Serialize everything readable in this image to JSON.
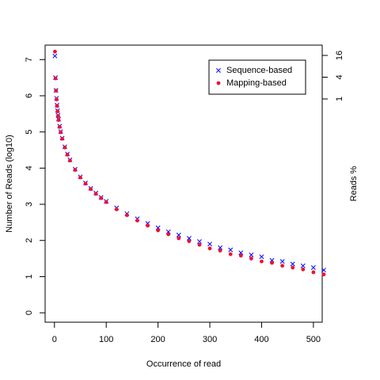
{
  "chart_data": {
    "type": "scatter",
    "xlabel": "Occurrence of read",
    "ylabel": "Number of Reads (log10)",
    "y2label": "Reads %",
    "x": [
      1,
      2,
      3,
      4,
      5,
      6,
      7,
      8,
      10,
      12,
      15,
      20,
      25,
      30,
      40,
      50,
      60,
      70,
      80,
      90,
      100,
      120,
      140,
      160,
      180,
      200,
      220,
      240,
      260,
      280,
      300,
      320,
      340,
      360,
      380,
      400,
      420,
      440,
      460,
      480,
      500,
      520
    ],
    "series": [
      {
        "name": "Sequence-based",
        "color": "#0000ff",
        "marker": "x",
        "values": [
          7.1,
          6.5,
          6.15,
          5.93,
          5.74,
          5.59,
          5.46,
          5.35,
          5.16,
          5.01,
          4.83,
          4.59,
          4.39,
          4.23,
          3.97,
          3.76,
          3.59,
          3.44,
          3.31,
          3.19,
          3.08,
          2.9,
          2.74,
          2.6,
          2.47,
          2.35,
          2.24,
          2.15,
          2.06,
          1.97,
          1.9,
          1.8,
          1.74,
          1.66,
          1.6,
          1.55,
          1.45,
          1.42,
          1.35,
          1.3,
          1.25,
          1.18
        ]
      },
      {
        "name": "Mapping-based",
        "color": "#ee1133",
        "marker": "circle",
        "values": [
          7.22,
          6.48,
          6.14,
          5.9,
          5.72,
          5.57,
          5.44,
          5.33,
          5.14,
          4.99,
          4.81,
          4.57,
          4.37,
          4.21,
          3.95,
          3.74,
          3.57,
          3.42,
          3.29,
          3.17,
          3.06,
          2.86,
          2.7,
          2.55,
          2.41,
          2.28,
          2.17,
          2.06,
          1.98,
          1.88,
          1.78,
          1.72,
          1.62,
          1.58,
          1.5,
          1.42,
          1.38,
          1.3,
          1.25,
          1.2,
          1.12,
          1.06
        ]
      }
    ],
    "xlim": [
      -18,
      517
    ],
    "xticks": [
      0,
      100,
      200,
      300,
      400,
      500
    ],
    "ylim": [
      -0.26,
      7.4
    ],
    "yticks": [
      0,
      1,
      2,
      3,
      4,
      5,
      6,
      7
    ],
    "y2lim": [
      6.7e-07,
      30.8
    ],
    "y2ticks": [
      1,
      4,
      16
    ],
    "y2log": true,
    "legend": "top-right"
  }
}
